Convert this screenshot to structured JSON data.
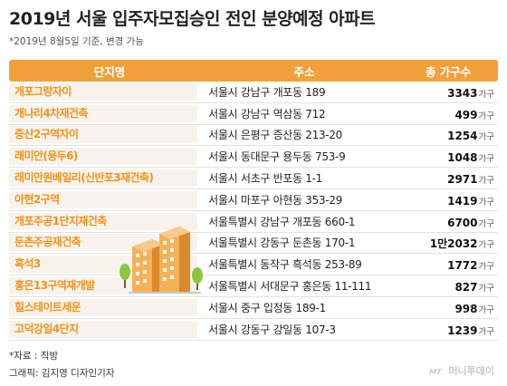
{
  "title": "2019년 서울 입주자모집승인 전인 분양예정 아파트",
  "subtitle": "*2019년 8월5일 기준, 변경 가능",
  "table": {
    "headers": [
      "단지명",
      "주소",
      "총 가구수"
    ],
    "unit": "가구",
    "rows": [
      {
        "name": "개포그랑자이",
        "address": "서울시 강남구 개포동 189",
        "count": "3343"
      },
      {
        "name": "개나리4차재건축",
        "address": "서울시 강남구 역삼동 712",
        "count": "499"
      },
      {
        "name": "증산2구역자이",
        "address": "서울시 은평구 증산동 213-20",
        "count": "1254"
      },
      {
        "name": "래미안(용두6)",
        "address": "서울시 동대문구 용두동 753-9",
        "count": "1048"
      },
      {
        "name": "래미안원베일리(신반포3재건축)",
        "address": "서울시 서초구 반포동 1-1",
        "count": "2971"
      },
      {
        "name": "아현2구역",
        "address": "서울시 마포구 아현동 353-29",
        "count": "1419"
      },
      {
        "name": "개포주공1단지재건축",
        "address": "서울특별시 강남구 개포동 660-1",
        "count": "6700"
      },
      {
        "name": "둔촌주공재건축",
        "address": "서울특별시 강동구 둔촌동 170-1",
        "count": "1만2032"
      },
      {
        "name": "흑석3",
        "address": "서울특별시 동작구 흑석동 253-89",
        "count": "1772"
      },
      {
        "name": "홍은13구역재개발",
        "address": "서울특별시 서대문구 홍은동 11-111",
        "count": "827"
      },
      {
        "name": "힐스테이트세운",
        "address": "서울시 중구 입정동 189-1",
        "count": "998"
      },
      {
        "name": "고덕강일4단지",
        "address": "서울시 강동구 강일동 107-3",
        "count": "1239"
      }
    ]
  },
  "source": "*자료 : 직방",
  "credit": "그래픽: 김지영 디자인기자",
  "logo": {
    "mark": "MT",
    "text": "머니투데이"
  },
  "colors": {
    "accent": "#f0a13c",
    "name_text": "#f0921e",
    "name_bg": "#f7f3ec"
  }
}
